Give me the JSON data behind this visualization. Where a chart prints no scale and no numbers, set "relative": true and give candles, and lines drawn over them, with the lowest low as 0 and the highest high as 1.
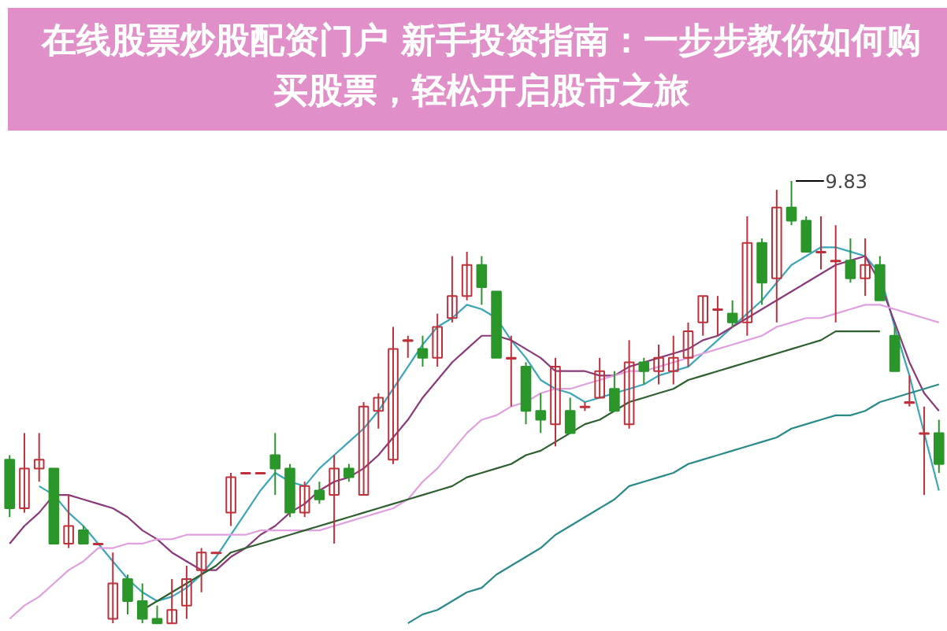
{
  "chart_data": {
    "type": "candlestick",
    "title": "在线股票炒股配资门户 新手投资指南：一步步教你如何购买股票，轻松开启股市之旅",
    "relative": true,
    "categories": [
      null,
      null,
      null,
      null,
      null,
      null,
      null,
      null,
      null,
      null,
      null,
      null,
      null,
      null,
      null,
      null,
      null,
      null,
      null,
      null,
      null,
      null,
      null,
      null,
      null,
      null,
      null,
      null,
      null,
      null,
      null,
      null,
      null,
      null,
      null,
      null,
      null,
      null,
      null,
      null,
      null,
      null,
      null,
      null,
      null,
      null,
      null,
      null,
      null,
      null,
      null,
      null,
      null,
      null,
      null,
      null,
      null,
      null,
      null,
      null,
      null,
      null,
      null,
      null
    ],
    "ohlc": [
      [
        0.37,
        0.38,
        0.24,
        0.26
      ],
      [
        0.26,
        0.43,
        0.25,
        0.35
      ],
      [
        0.35,
        0.43,
        0.32,
        0.37
      ],
      [
        0.35,
        0.35,
        0.18,
        0.18
      ],
      [
        0.18,
        0.29,
        0.17,
        0.22
      ],
      [
        0.21,
        0.22,
        0.18,
        0.18
      ],
      [
        0.18,
        0.18,
        0.18,
        0.18
      ],
      [
        0.01,
        0.16,
        0.0,
        0.09
      ],
      [
        0.1,
        0.11,
        0.02,
        0.05
      ],
      [
        0.05,
        0.09,
        0.0,
        0.01
      ],
      [
        0.01,
        0.04,
        0.0,
        0.0
      ],
      [
        0.0,
        0.1,
        0.0,
        0.03
      ],
      [
        0.04,
        0.13,
        0.01,
        0.1
      ],
      [
        0.12,
        0.17,
        0.07,
        0.16
      ],
      [
        0.16,
        0.16,
        0.16,
        0.16
      ],
      [
        0.25,
        0.34,
        0.22,
        0.33
      ],
      [
        0.34,
        0.34,
        0.34,
        0.34
      ],
      [
        0.34,
        0.34,
        0.34,
        0.34
      ],
      [
        0.38,
        0.43,
        0.29,
        0.35
      ],
      [
        0.35,
        0.36,
        0.24,
        0.25
      ],
      [
        0.25,
        0.32,
        0.24,
        0.31
      ],
      [
        0.3,
        0.32,
        0.27,
        0.28
      ],
      [
        0.29,
        0.38,
        0.18,
        0.35
      ],
      [
        0.35,
        0.36,
        0.32,
        0.33
      ],
      [
        0.29,
        0.5,
        0.29,
        0.49
      ],
      [
        0.48,
        0.52,
        0.44,
        0.51
      ],
      [
        0.37,
        0.67,
        0.36,
        0.62
      ],
      [
        0.64,
        0.65,
        0.6,
        0.64
      ],
      [
        0.62,
        0.65,
        0.58,
        0.6
      ],
      [
        0.6,
        0.7,
        0.58,
        0.67
      ],
      [
        0.69,
        0.83,
        0.68,
        0.74
      ],
      [
        0.74,
        0.84,
        0.73,
        0.81
      ],
      [
        0.81,
        0.83,
        0.72,
        0.76
      ],
      [
        0.75,
        0.75,
        0.6,
        0.6
      ],
      [
        0.6,
        0.65,
        0.49,
        0.6
      ],
      [
        0.58,
        0.59,
        0.45,
        0.48
      ],
      [
        0.48,
        0.52,
        0.43,
        0.46
      ],
      [
        0.45,
        0.6,
        0.4,
        0.58
      ],
      [
        0.48,
        0.51,
        0.43,
        0.43
      ],
      [
        0.49,
        0.5,
        0.48,
        0.49
      ],
      [
        0.51,
        0.6,
        0.51,
        0.57
      ],
      [
        0.53,
        0.57,
        0.48,
        0.48
      ],
      [
        0.45,
        0.64,
        0.44,
        0.59
      ],
      [
        0.59,
        0.6,
        0.54,
        0.57
      ],
      [
        0.57,
        0.63,
        0.54,
        0.6
      ],
      [
        0.57,
        0.65,
        0.54,
        0.6
      ],
      [
        0.6,
        0.68,
        0.58,
        0.66
      ],
      [
        0.68,
        0.74,
        0.65,
        0.74
      ],
      [
        0.71,
        0.74,
        0.65,
        0.71
      ],
      [
        0.7,
        0.73,
        0.67,
        0.68
      ],
      [
        0.68,
        0.92,
        0.65,
        0.86
      ],
      [
        0.86,
        0.87,
        0.72,
        0.77
      ],
      [
        0.78,
        0.98,
        0.68,
        0.94
      ],
      [
        0.94,
        1.0,
        0.9,
        0.91
      ],
      [
        0.91,
        0.92,
        0.84,
        0.84
      ],
      [
        0.84,
        0.92,
        0.8,
        0.84
      ],
      [
        0.82,
        0.9,
        0.68,
        0.82
      ],
      [
        0.82,
        0.87,
        0.77,
        0.78
      ],
      [
        0.78,
        0.87,
        0.74,
        0.81
      ],
      [
        0.81,
        0.83,
        0.73,
        0.73
      ],
      [
        0.65,
        0.67,
        0.57,
        0.57
      ],
      [
        0.5,
        0.56,
        0.49,
        0.5
      ],
      [
        0.43,
        0.49,
        0.29,
        0.43
      ],
      [
        0.43,
        0.46,
        0.34,
        0.36
      ]
    ],
    "series": [
      {
        "type": "line",
        "color": "#3aa6b8",
        "values": [
          null,
          null,
          0.31,
          0.29,
          0.25,
          0.22,
          0.18,
          0.14,
          0.1,
          0.07,
          0.05,
          0.06,
          0.08,
          0.11,
          0.15,
          0.2,
          0.25,
          0.3,
          0.34,
          0.32,
          0.31,
          0.35,
          0.38,
          0.41,
          0.44,
          0.48,
          0.53,
          0.58,
          0.63,
          0.67,
          0.69,
          0.72,
          0.71,
          0.69,
          0.64,
          0.6,
          0.55,
          0.53,
          0.52,
          0.5,
          0.51,
          0.52,
          0.53,
          0.54,
          0.56,
          0.57,
          0.58,
          0.61,
          0.64,
          0.67,
          0.7,
          0.73,
          0.77,
          0.81,
          0.83,
          0.85,
          0.85,
          0.84,
          0.83,
          0.79,
          0.67,
          0.56,
          0.43,
          0.3
        ]
      },
      {
        "type": "line",
        "color": "#8a3a7a",
        "values": [
          0.18,
          0.22,
          0.25,
          0.29,
          0.29,
          0.28,
          0.27,
          0.26,
          0.24,
          0.21,
          0.19,
          0.16,
          0.14,
          0.12,
          0.12,
          0.15,
          0.17,
          0.2,
          0.22,
          0.25,
          0.27,
          0.3,
          0.32,
          0.33,
          0.35,
          0.38,
          0.42,
          0.46,
          0.51,
          0.55,
          0.59,
          0.62,
          0.65,
          0.65,
          0.64,
          0.62,
          0.6,
          0.57,
          0.57,
          0.57,
          0.56,
          0.56,
          0.58,
          0.59,
          0.6,
          0.61,
          0.62,
          0.64,
          0.65,
          0.67,
          0.69,
          0.71,
          0.73,
          0.75,
          0.77,
          0.79,
          0.81,
          0.82,
          0.83,
          0.77,
          0.68,
          0.59,
          0.52,
          0.48
        ]
      },
      {
        "type": "line",
        "color": "#e0a0e0",
        "values": [
          0.01,
          0.04,
          0.06,
          0.09,
          0.12,
          0.14,
          0.17,
          0.17,
          0.18,
          0.18,
          0.19,
          0.19,
          0.2,
          0.2,
          0.2,
          0.2,
          0.2,
          0.21,
          0.21,
          0.21,
          0.21,
          0.21,
          0.22,
          0.23,
          0.24,
          0.25,
          0.26,
          0.28,
          0.32,
          0.35,
          0.39,
          0.43,
          0.46,
          0.47,
          0.49,
          0.5,
          0.52,
          0.53,
          0.53,
          0.54,
          0.55,
          0.56,
          0.57,
          0.57,
          0.58,
          0.59,
          0.6,
          0.61,
          0.62,
          0.63,
          0.64,
          0.65,
          0.67,
          0.68,
          0.69,
          0.69,
          0.7,
          0.71,
          0.72,
          0.72,
          0.71,
          0.7,
          0.69,
          0.68
        ]
      },
      {
        "type": "line",
        "color": "#2f5f2f",
        "values": [
          null,
          null,
          null,
          null,
          null,
          null,
          null,
          null,
          null,
          0.03,
          0.05,
          0.07,
          0.09,
          0.11,
          0.13,
          0.16,
          0.17,
          0.18,
          0.19,
          0.2,
          0.21,
          0.22,
          0.23,
          0.24,
          0.25,
          0.26,
          0.27,
          0.28,
          0.29,
          0.3,
          0.31,
          0.33,
          0.34,
          0.35,
          0.36,
          0.38,
          0.39,
          0.41,
          0.43,
          0.45,
          0.46,
          0.48,
          0.5,
          0.51,
          0.52,
          0.53,
          0.55,
          0.56,
          0.57,
          0.58,
          0.59,
          0.6,
          0.61,
          0.62,
          0.63,
          0.64,
          0.66,
          0.66,
          0.66,
          0.66,
          null,
          null,
          null,
          null
        ]
      },
      {
        "type": "line",
        "color": "#2a8a8a",
        "values": [
          null,
          null,
          null,
          null,
          null,
          null,
          null,
          null,
          null,
          null,
          null,
          null,
          null,
          null,
          null,
          null,
          null,
          null,
          null,
          null,
          null,
          null,
          null,
          null,
          null,
          null,
          null,
          0.0,
          0.02,
          0.03,
          0.05,
          0.07,
          0.08,
          0.11,
          0.13,
          0.15,
          0.17,
          0.2,
          0.22,
          0.24,
          0.26,
          0.28,
          0.31,
          0.32,
          0.33,
          0.34,
          0.36,
          0.37,
          0.38,
          0.39,
          0.4,
          0.41,
          0.42,
          0.44,
          0.45,
          0.46,
          0.47,
          0.47,
          0.48,
          0.5,
          0.51,
          0.52,
          0.53,
          0.54
        ]
      }
    ],
    "annotations": [
      "9.83"
    ]
  }
}
